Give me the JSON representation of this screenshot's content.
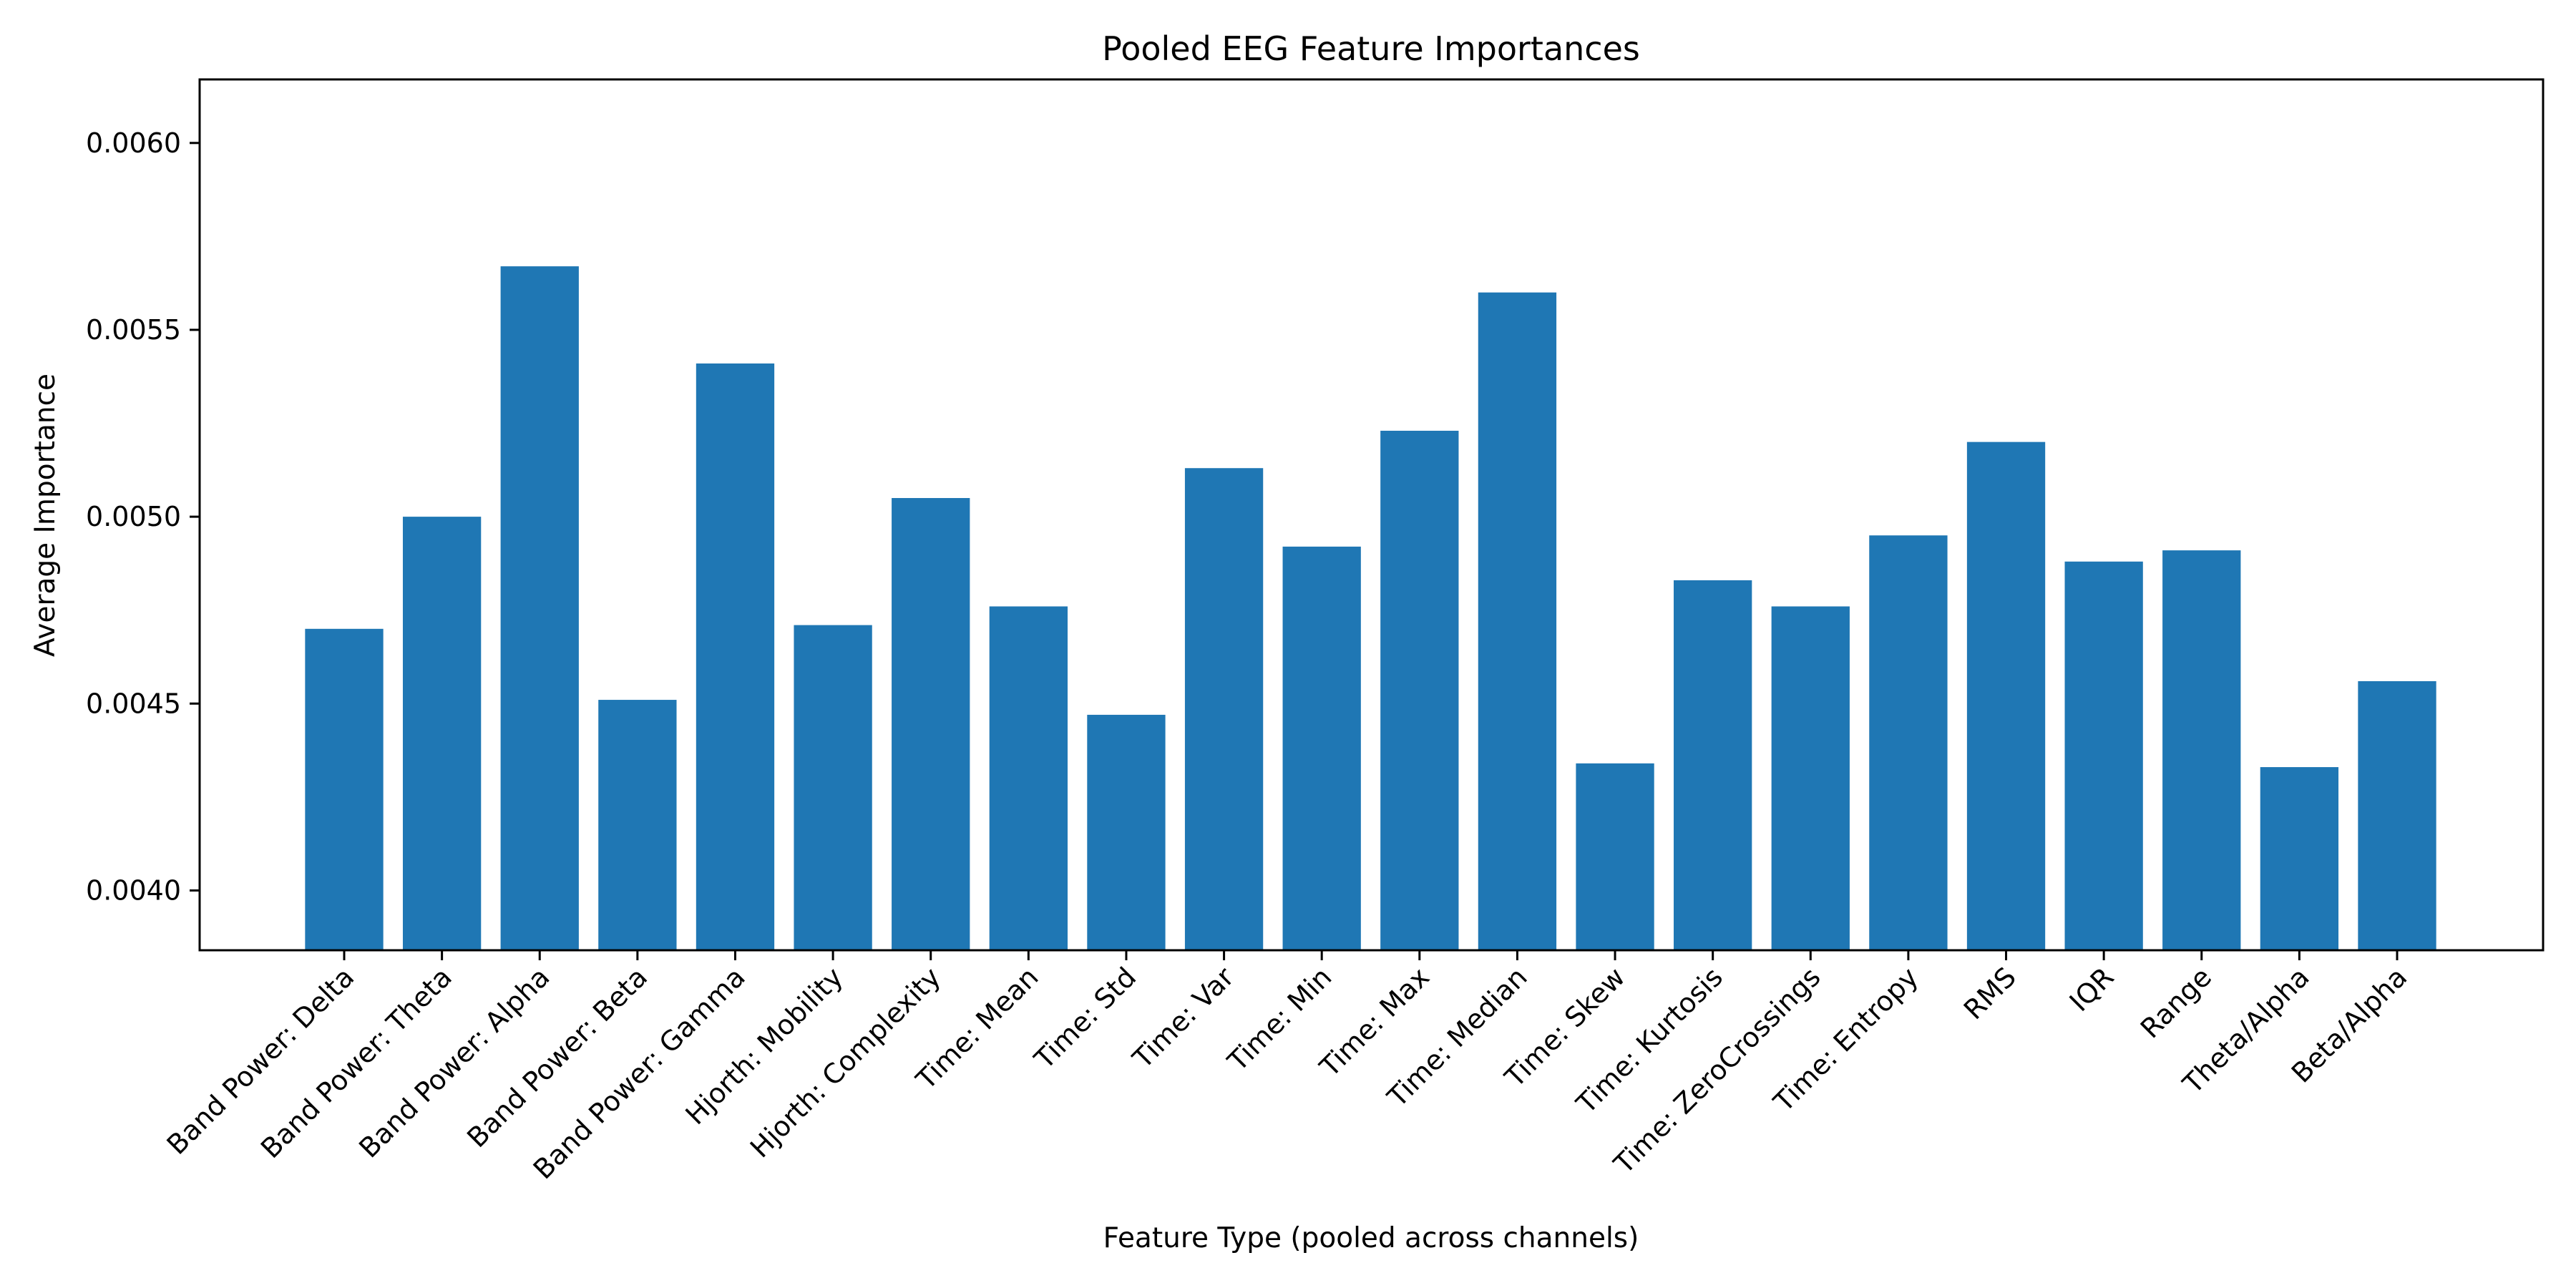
{
  "chart_data": {
    "type": "bar",
    "title": "Pooled EEG Feature Importances",
    "xlabel": "Feature Type (pooled across channels)",
    "ylabel": "Average Importance",
    "ylim": [
      0.00384,
      0.00617
    ],
    "yticks": [
      "0.0040",
      "0.0045",
      "0.0050",
      "0.0055",
      "0.0060"
    ],
    "grid": false,
    "color": "#1f77b4",
    "categories": [
      "Band Power: Delta",
      "Band Power: Theta",
      "Band Power: Alpha",
      "Band Power: Beta",
      "Band Power: Gamma",
      "Hjorth: Mobility",
      "Hjorth: Complexity",
      "Time: Mean",
      "Time: Std",
      "Time: Var",
      "Time: Min",
      "Time: Max",
      "Time: Median",
      "Time: Skew",
      "Time: Kurtosis",
      "Time: ZeroCrossings",
      "Time: Entropy",
      "RMS",
      "IQR",
      "Range",
      "Theta/Alpha",
      "Beta/Alpha"
    ],
    "values": [
      0.0047,
      0.005,
      0.00567,
      0.00451,
      0.00541,
      0.00471,
      0.00505,
      0.00476,
      0.00447,
      0.00513,
      0.00492,
      0.00523,
      0.0056,
      0.00434,
      0.00483,
      0.00476,
      0.00495,
      0.0052,
      0.00488,
      0.00491,
      0.00433,
      0.00456
    ]
  }
}
